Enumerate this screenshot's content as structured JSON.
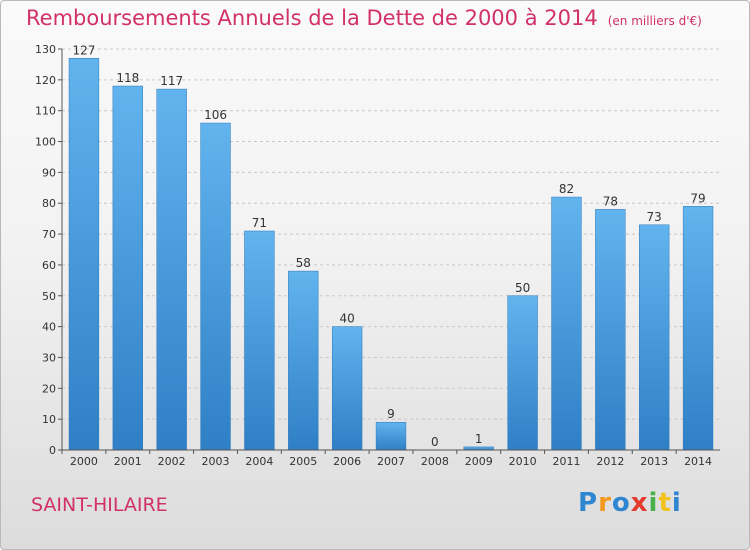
{
  "chart_data": {
    "type": "bar",
    "title": "Remboursements Annuels de la Dette de 2000 à 2014",
    "subtitle": "(en milliers d'€)",
    "categories": [
      "2000",
      "2001",
      "2002",
      "2003",
      "2004",
      "2005",
      "2006",
      "2007",
      "2008",
      "2009",
      "2010",
      "2011",
      "2012",
      "2013",
      "2014"
    ],
    "values": [
      127,
      118,
      117,
      106,
      71,
      58,
      40,
      9,
      0,
      1,
      50,
      82,
      78,
      73,
      79
    ],
    "ylim": [
      0,
      130
    ],
    "yticks": [
      0,
      10,
      20,
      30,
      40,
      50,
      60,
      70,
      80,
      90,
      100,
      110,
      120,
      130
    ],
    "xlabel": "",
    "ylabel": "",
    "grid": true
  },
  "commune": "SAINT-HILAIRE",
  "logo": {
    "letters": [
      "P",
      "r",
      "o",
      "x",
      "i",
      "t",
      "i"
    ],
    "colors": [
      "#2e86d1",
      "#f39a1e",
      "#2e86d1",
      "#e63a2e",
      "#4bb04a",
      "#f3c21e",
      "#2e86d1"
    ]
  },
  "colors": {
    "bar_light": "#62b4ee",
    "bar_dark": "#2f7fc6",
    "accent": "#d2306a",
    "grid": "#c8c8c8",
    "axis_text": "#333333"
  }
}
